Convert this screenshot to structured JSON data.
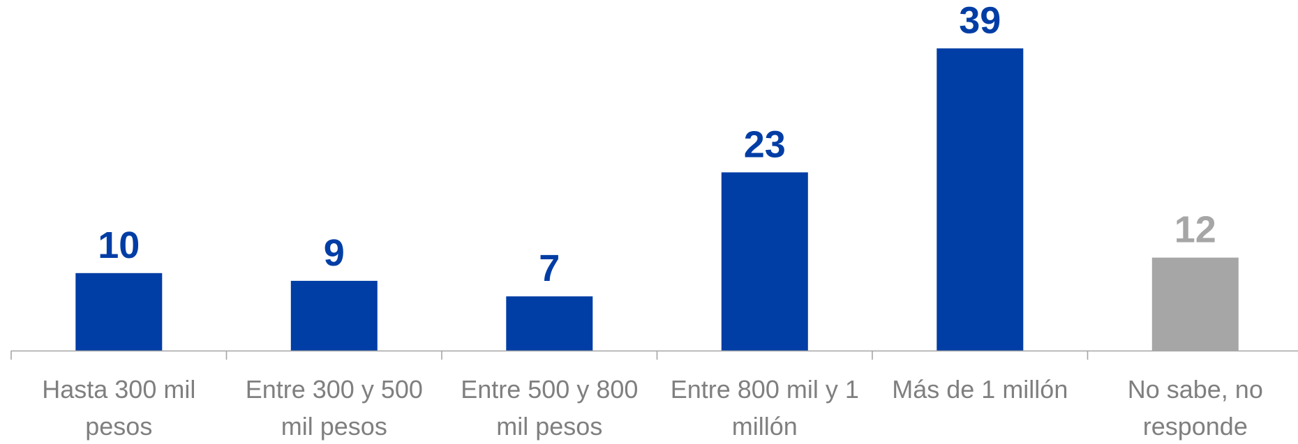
{
  "chart_data": {
    "type": "bar",
    "title": "",
    "xlabel": "",
    "ylabel": "",
    "ylim": [
      0,
      42
    ],
    "grid": false,
    "legend": "none",
    "categories": [
      [
        "Hasta 300 mil",
        "pesos"
      ],
      [
        "Entre 300 y 500",
        "mil pesos"
      ],
      [
        "Entre 500 y 800",
        "mil pesos"
      ],
      [
        "Entre 800 mil y 1",
        "millón"
      ],
      [
        "Más de 1 millón"
      ],
      [
        "No sabe, no",
        "responde"
      ]
    ],
    "values": [
      10,
      9,
      7,
      23,
      39,
      12
    ],
    "bar_colors": [
      "#003da5",
      "#003da5",
      "#003da5",
      "#003da5",
      "#003da5",
      "#a6a6a6"
    ],
    "axis_color": "#a6a6a6"
  }
}
